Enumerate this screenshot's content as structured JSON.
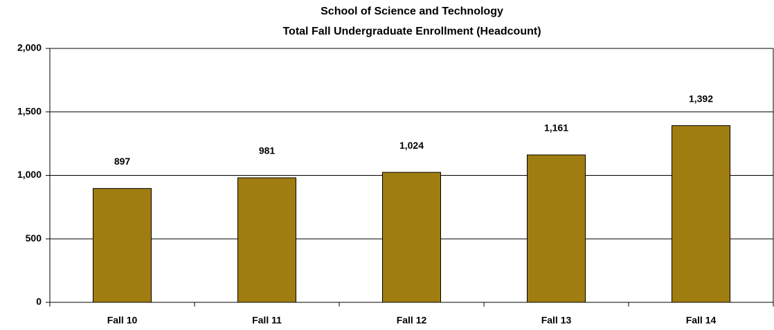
{
  "chart_data": {
    "type": "bar",
    "title": "School of Science and Technology",
    "subtitle": "Total Fall Undergraduate Enrollment (Headcount)",
    "categories": [
      "Fall 10",
      "Fall 11",
      "Fall 12",
      "Fall 13",
      "Fall 14"
    ],
    "values": [
      897,
      981,
      1024,
      1161,
      1392
    ],
    "value_labels": [
      "897",
      "981",
      "1,024",
      "1,161",
      "1,392"
    ],
    "color": "#a07d10",
    "ylim": [
      0,
      2000
    ],
    "yticks": [
      0,
      500,
      {
        "value": 1000,
        "label": "1,000"
      },
      {
        "value": 1500,
        "label": "1,500"
      },
      {
        "value": 2000,
        "label": "2,000"
      }
    ],
    "grid": true
  }
}
